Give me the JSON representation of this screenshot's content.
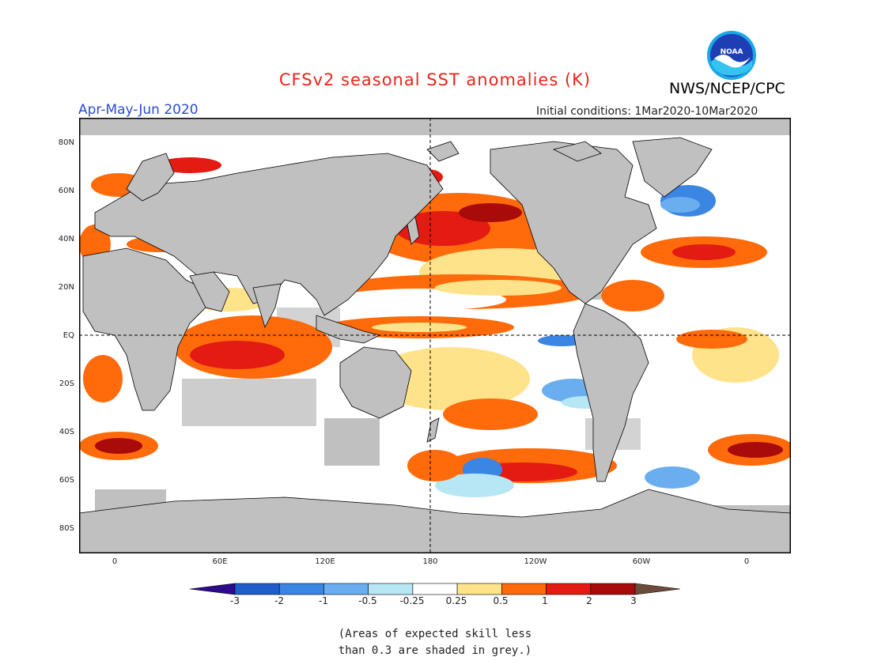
{
  "header": {
    "title": "CFSv2 seasonal SST anomalies (K)",
    "organization": "NWS/NCEP/CPC",
    "season": "Apr-May-Jun 2020",
    "initial_conditions": "Initial conditions: 1Mar2020-10Mar2020",
    "logo_text": "NOAA"
  },
  "map": {
    "lat_labels": [
      "80N",
      "60N",
      "40N",
      "20N",
      "EQ",
      "20S",
      "40S",
      "60S",
      "80S"
    ],
    "lon_labels": [
      "0",
      "60E",
      "120E",
      "180",
      "120W",
      "60W",
      "0"
    ],
    "colors": {
      "land": "#c0c0c0",
      "ocean_neutral": "#ffffff",
      "low_skill": "#c0c0c0"
    }
  },
  "colorbar": {
    "tick_labels": [
      "-3",
      "-2",
      "-1",
      "-0.5",
      "-0.25",
      "0.25",
      "0.5",
      "1",
      "2",
      "3"
    ],
    "colors": [
      "#2e0a8c",
      "#1f5ec9",
      "#3b85e3",
      "#6aaef0",
      "#b7e7f5",
      "#ffffff",
      "#ffe38a",
      "#ff6a0a",
      "#e31b12",
      "#a90b0b",
      "#6e4a3a"
    ]
  },
  "note": {
    "line1": "(Areas of expected skill less",
    "line2": "than 0.3 are shaded in grey.)"
  }
}
